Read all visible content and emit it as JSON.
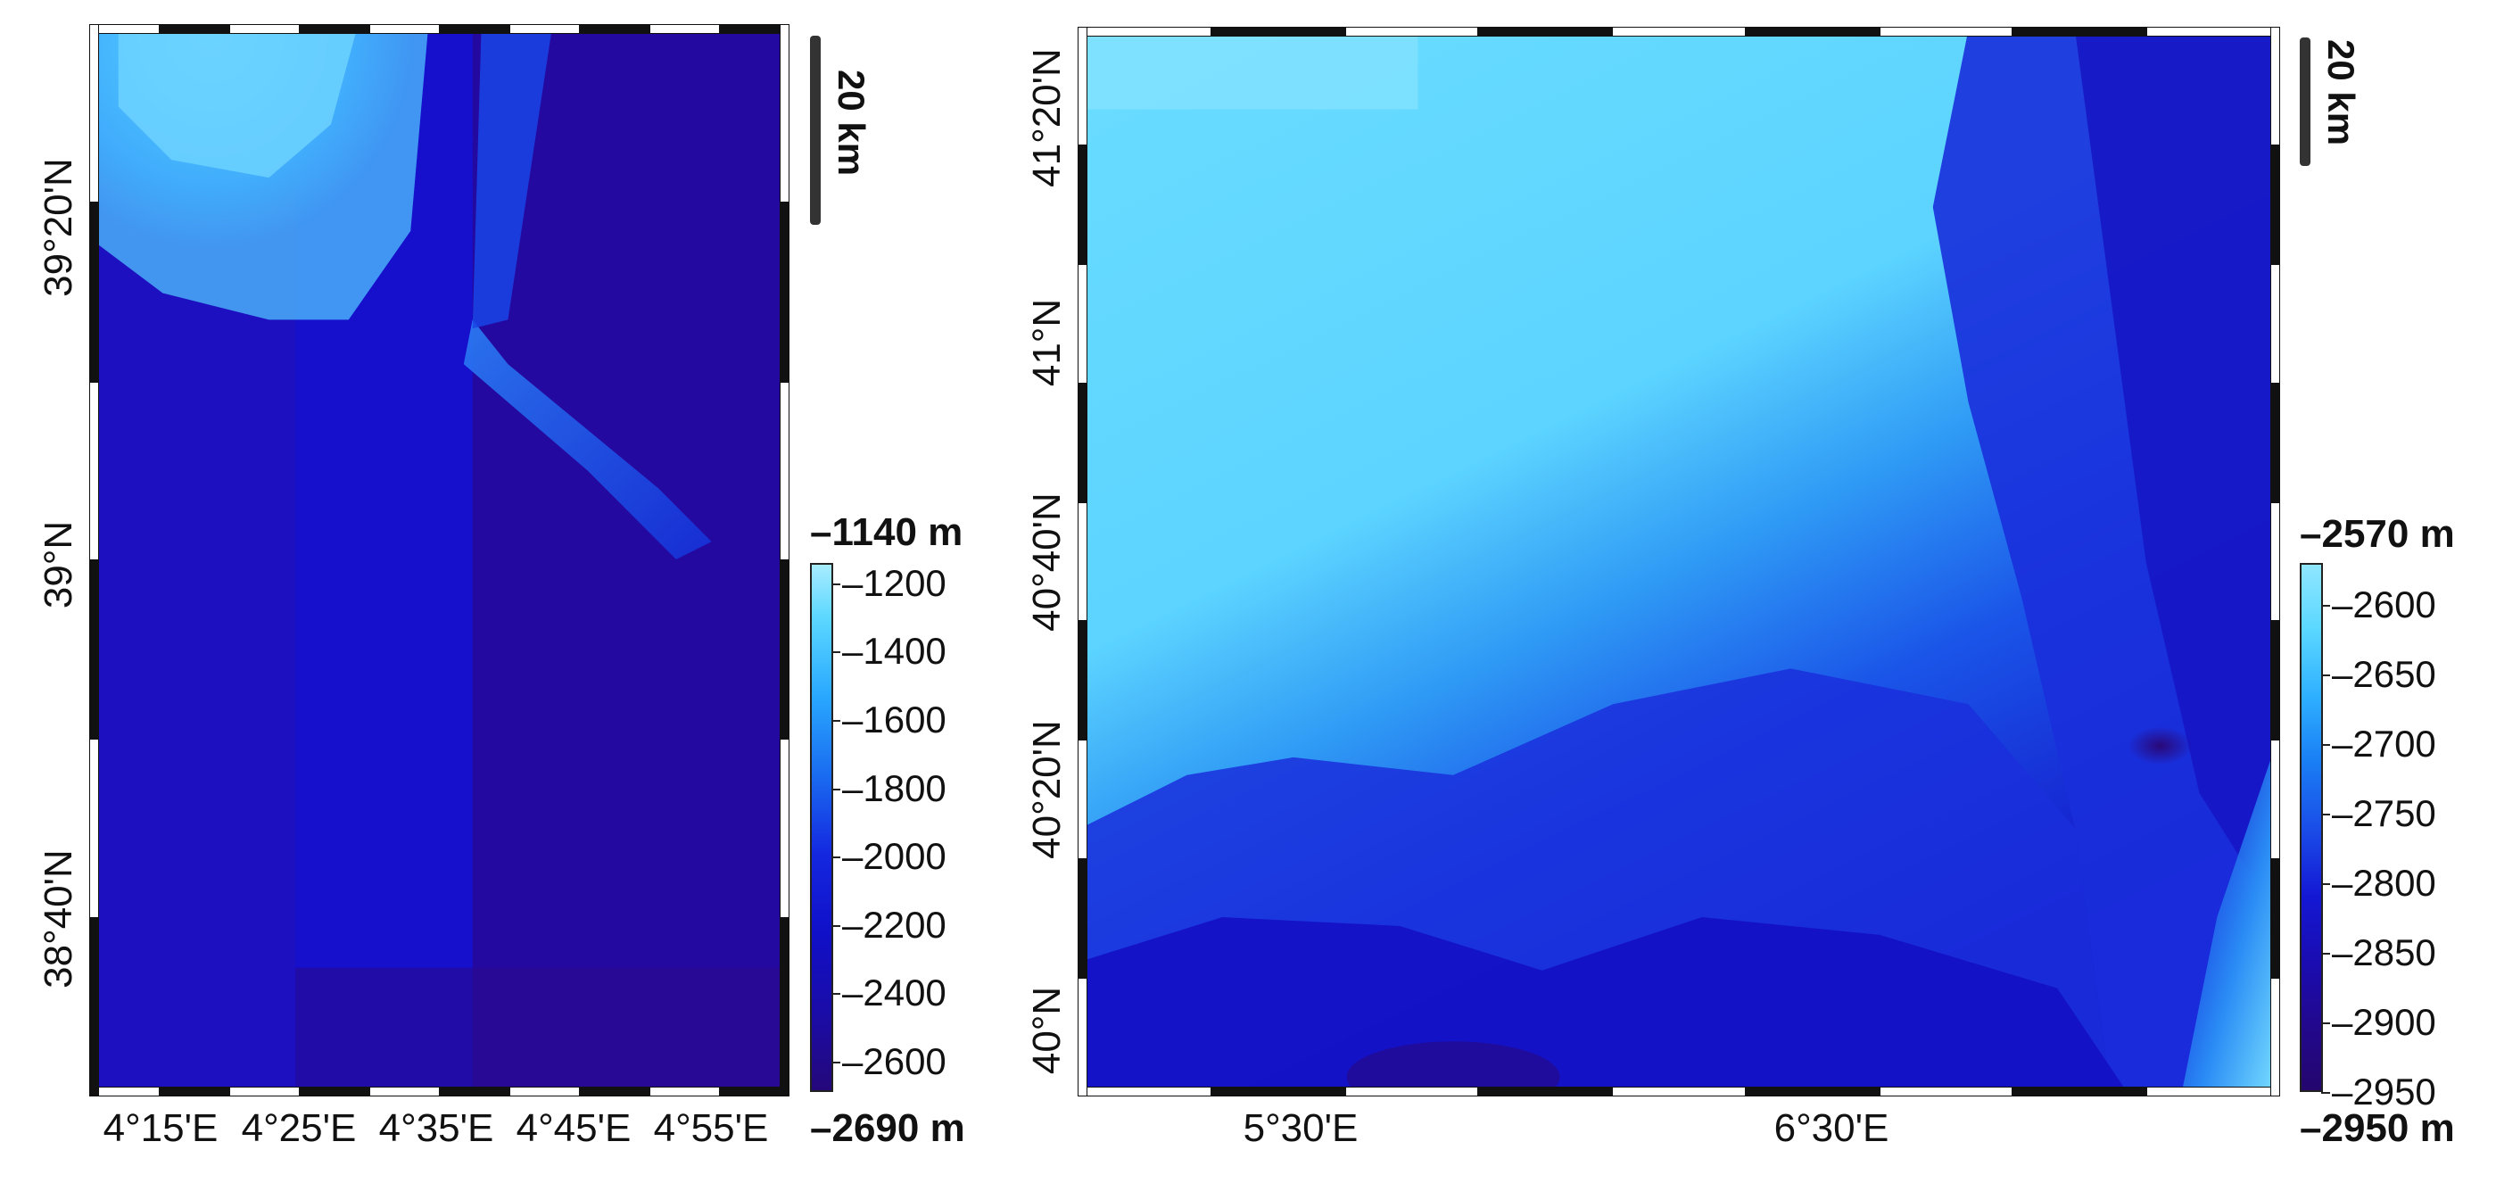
{
  "maps": [
    {
      "id": "left",
      "x_ticks": [
        "4°15'E",
        "4°25'E",
        "4°35'E",
        "4°45'E",
        "4°55'E"
      ],
      "y_ticks": [
        "39°20'N",
        "39°N",
        "38°40'N"
      ],
      "scalebar_label": "20 km",
      "colorbar": {
        "max_label": "–1140 m",
        "min_label": "–2690 m",
        "range": [
          -2690,
          -1140
        ],
        "ticks": [
          "–1200",
          "–1400",
          "–1600",
          "–1800",
          "–2000",
          "–2200",
          "–2400",
          "–2600"
        ],
        "tick_values": [
          -1200,
          -1400,
          -1600,
          -1800,
          -2000,
          -2200,
          -2400,
          -2600
        ]
      }
    },
    {
      "id": "right",
      "x_ticks": [
        "5°30'E",
        "6°30'E"
      ],
      "y_ticks": [
        "41°20'N",
        "41°N",
        "40°40'N",
        "40°20'N",
        "40°N"
      ],
      "scalebar_label": "20 km",
      "colorbar": {
        "max_label": "–2570 m",
        "min_label": "–2950 m",
        "range": [
          -2950,
          -2570
        ],
        "ticks": [
          "–2600",
          "–2650",
          "–2700",
          "–2750",
          "–2800",
          "–2850",
          "–2900",
          "–2950"
        ],
        "tick_values": [
          -2600,
          -2650,
          -2700,
          -2750,
          -2800,
          -2850,
          -2900,
          -2950
        ]
      }
    }
  ],
  "colors": {
    "shallow": "#8fe6ff",
    "light": "#5cd8ff",
    "mid": "#1a7cf0",
    "deep": "#1010d0",
    "deepest": "#22087a",
    "frame": "#222222"
  }
}
